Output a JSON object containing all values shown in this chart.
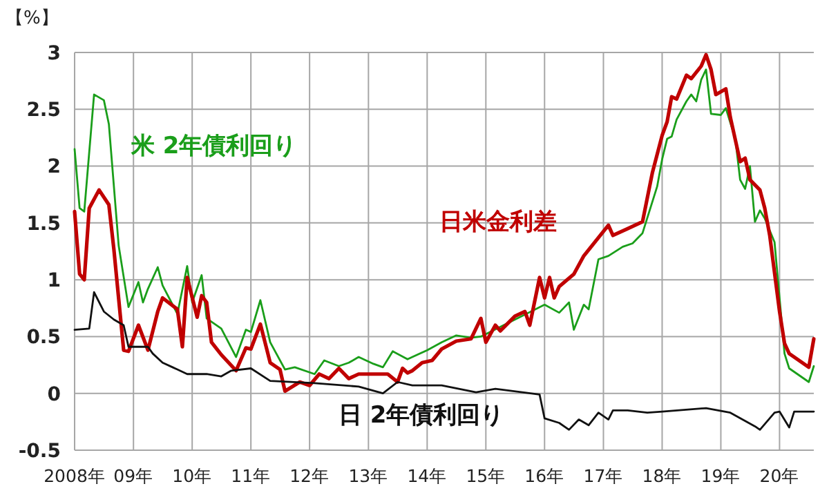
{
  "chart_data": {
    "type": "line",
    "ylabel": "【%】",
    "xlim": [
      "2008-01",
      "2020-08"
    ],
    "ylim": [
      -0.5,
      3
    ],
    "xticks": [
      {
        "value": "2008",
        "label": "2008年"
      },
      {
        "value": "2009",
        "label": "09年"
      },
      {
        "value": "2010",
        "label": "10年"
      },
      {
        "value": "2011",
        "label": "11年"
      },
      {
        "value": "2012",
        "label": "12年"
      },
      {
        "value": "2013",
        "label": "13年"
      },
      {
        "value": "2014",
        "label": "14年"
      },
      {
        "value": "2015",
        "label": "15年"
      },
      {
        "value": "2016",
        "label": "16年"
      },
      {
        "value": "2017",
        "label": "17年"
      },
      {
        "value": "2018",
        "label": "18年"
      },
      {
        "value": "2019",
        "label": "19年"
      },
      {
        "value": "2020",
        "label": "20年"
      }
    ],
    "yticks": [
      -0.5,
      0,
      0.5,
      1,
      1.5,
      2,
      2.5,
      3
    ],
    "grid": true,
    "legend": false,
    "marker": "none",
    "line_style": "solid",
    "series": [
      {
        "name": "米 2年債利回り",
        "color": "#1a9e1a",
        "x": [
          "2008-01",
          "2008-02",
          "2008-03",
          "2008-05",
          "2008-07",
          "2008-08",
          "2008-10",
          "2008-12",
          "2009-02",
          "2009-03",
          "2009-04",
          "2009-06",
          "2009-07",
          "2009-10",
          "2009-12",
          "2010-01",
          "2010-03",
          "2010-04",
          "2010-07",
          "2010-10",
          "2010-12",
          "2011-01",
          "2011-03",
          "2011-05",
          "2011-08",
          "2011-10",
          "2012-02",
          "2012-04",
          "2012-07",
          "2012-09",
          "2012-11",
          "2013-02",
          "2013-04",
          "2013-06",
          "2013-09",
          "2013-10",
          "2014-01",
          "2014-04",
          "2014-07",
          "2014-10",
          "2014-12",
          "2015-07",
          "2016-01",
          "2016-04",
          "2016-06",
          "2016-07",
          "2016-09",
          "2016-10",
          "2016-12",
          "2017-02",
          "2017-05",
          "2017-07",
          "2017-09",
          "2017-12",
          "2018-01",
          "2018-02",
          "2018-03",
          "2018-04",
          "2018-06",
          "2018-07",
          "2018-08",
          "2018-09",
          "2018-10",
          "2018-11",
          "2019-01",
          "2019-02",
          "2019-04",
          "2019-05",
          "2019-06",
          "2019-07",
          "2019-08",
          "2019-09",
          "2019-10",
          "2019-12",
          "2020-02",
          "2020-03",
          "2020-07",
          "2020-08"
        ],
        "values": [
          2.15,
          1.63,
          1.6,
          2.63,
          2.58,
          2.37,
          1.3,
          0.76,
          0.98,
          0.8,
          0.92,
          1.11,
          0.95,
          0.7,
          1.12,
          0.8,
          1.04,
          0.66,
          0.57,
          0.32,
          0.56,
          0.54,
          0.82,
          0.45,
          0.21,
          0.23,
          0.17,
          0.29,
          0.24,
          0.27,
          0.32,
          0.26,
          0.23,
          0.37,
          0.3,
          0.32,
          0.38,
          0.45,
          0.51,
          0.49,
          0.5,
          0.65,
          0.78,
          0.71,
          0.8,
          0.56,
          0.78,
          0.74,
          1.18,
          1.21,
          1.29,
          1.32,
          1.41,
          1.82,
          2.06,
          2.24,
          2.26,
          2.41,
          2.57,
          2.63,
          2.57,
          2.76,
          2.85,
          2.46,
          2.45,
          2.51,
          2.24,
          1.88,
          1.8,
          2.0,
          1.51,
          1.61,
          1.54,
          1.33,
          0.35,
          0.22,
          0.1,
          0.24
        ]
      },
      {
        "name": "日米金利差",
        "color": "#c00000",
        "x": [
          "2008-01",
          "2008-02",
          "2008-03",
          "2008-04",
          "2008-06",
          "2008-08",
          "2008-09",
          "2008-11",
          "2008-12",
          "2009-02",
          "2009-04",
          "2009-06",
          "2009-07",
          "2009-10",
          "2009-11",
          "2009-12",
          "2010-02",
          "2010-03",
          "2010-04",
          "2010-05",
          "2010-07",
          "2010-10",
          "2010-12",
          "2011-01",
          "2011-03",
          "2011-05",
          "2011-07",
          "2011-08",
          "2011-11",
          "2012-01",
          "2012-03",
          "2012-05",
          "2012-07",
          "2012-09",
          "2012-11",
          "2013-05",
          "2013-07",
          "2013-08",
          "2013-09",
          "2013-10",
          "2013-12",
          "2014-02",
          "2014-04",
          "2014-07",
          "2014-10",
          "2014-12",
          "2015-01",
          "2015-03",
          "2015-04",
          "2015-07",
          "2015-09",
          "2015-10",
          "2015-12",
          "2016-01",
          "2016-02",
          "2016-03",
          "2016-04",
          "2016-07",
          "2016-09",
          "2017-02",
          "2017-03",
          "2017-06",
          "2017-09",
          "2017-11",
          "2018-01",
          "2018-02",
          "2018-03",
          "2018-04",
          "2018-06",
          "2018-07",
          "2018-09",
          "2018-10",
          "2018-11",
          "2018-12",
          "2019-02",
          "2019-03",
          "2019-05",
          "2019-06",
          "2019-07",
          "2019-09",
          "2019-10",
          "2019-11",
          "2020-01",
          "2020-02",
          "2020-03",
          "2020-04",
          "2020-07",
          "2020-08"
        ],
        "values": [
          1.6,
          1.05,
          1.0,
          1.63,
          1.79,
          1.66,
          1.27,
          0.38,
          0.37,
          0.6,
          0.38,
          0.72,
          0.84,
          0.74,
          0.41,
          1.02,
          0.67,
          0.86,
          0.8,
          0.45,
          0.34,
          0.2,
          0.4,
          0.39,
          0.61,
          0.27,
          0.21,
          0.02,
          0.1,
          0.07,
          0.17,
          0.13,
          0.22,
          0.13,
          0.17,
          0.17,
          0.1,
          0.22,
          0.18,
          0.2,
          0.27,
          0.29,
          0.39,
          0.46,
          0.48,
          0.66,
          0.45,
          0.6,
          0.55,
          0.68,
          0.72,
          0.6,
          1.02,
          0.84,
          1.02,
          0.84,
          0.94,
          1.05,
          1.21,
          1.48,
          1.39,
          1.45,
          1.51,
          1.94,
          2.27,
          2.39,
          2.61,
          2.59,
          2.8,
          2.77,
          2.88,
          2.98,
          2.85,
          2.63,
          2.68,
          2.43,
          2.04,
          2.07,
          1.88,
          1.79,
          1.63,
          1.39,
          0.72,
          0.44,
          0.35,
          0.32,
          0.23,
          0.48
        ]
      },
      {
        "name": "日 2年債利回り",
        "color": "#111111",
        "x": [
          "2008-01",
          "2008-04",
          "2008-05",
          "2008-07",
          "2008-09",
          "2008-11",
          "2008-12",
          "2009-04",
          "2009-05",
          "2009-07",
          "2009-09",
          "2009-12",
          "2010-04",
          "2010-07",
          "2010-09",
          "2011-01",
          "2011-05",
          "2012-02",
          "2012-11",
          "2013-04",
          "2013-07",
          "2013-10",
          "2014-04",
          "2014-11",
          "2015-03",
          "2015-12",
          "2016-01",
          "2016-04",
          "2016-06",
          "2016-08",
          "2016-10",
          "2016-12",
          "2017-02",
          "2017-03",
          "2017-06",
          "2017-10",
          "2018-01",
          "2018-10",
          "2019-03",
          "2019-08",
          "2019-09",
          "2019-12",
          "2020-01",
          "2020-03",
          "2020-04",
          "2020-08"
        ],
        "values": [
          0.56,
          0.57,
          0.89,
          0.72,
          0.65,
          0.6,
          0.41,
          0.41,
          0.35,
          0.27,
          0.23,
          0.17,
          0.17,
          0.15,
          0.2,
          0.22,
          0.11,
          0.09,
          0.06,
          0.0,
          0.1,
          0.07,
          0.07,
          0.01,
          0.04,
          -0.01,
          -0.22,
          -0.26,
          -0.32,
          -0.23,
          -0.28,
          -0.17,
          -0.23,
          -0.15,
          -0.15,
          -0.17,
          -0.16,
          -0.13,
          -0.17,
          -0.29,
          -0.32,
          -0.17,
          -0.16,
          -0.3,
          -0.16,
          -0.16
        ]
      }
    ]
  }
}
